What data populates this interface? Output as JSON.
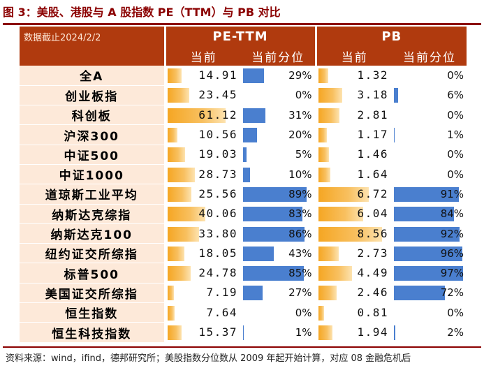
{
  "title": "图 3：美股、港股与 A 股指数 PE（TTM）与 PB 对比",
  "table": {
    "date_label": "数据截止2024/2/2",
    "group_pe": "PE-TTM",
    "group_pb": "PB",
    "sub_current": "当前",
    "sub_percentile": "当前分位",
    "rows": [
      {
        "name": "全A",
        "pe": "14.91",
        "pe_pct": "29%",
        "pb": "1.32",
        "pb_pct": "0%"
      },
      {
        "name": "创业板指",
        "pe": "23.45",
        "pe_pct": "0%",
        "pb": "3.18",
        "pb_pct": "6%"
      },
      {
        "name": "科创板",
        "pe": "61.12",
        "pe_pct": "31%",
        "pb": "2.81",
        "pb_pct": "0%"
      },
      {
        "name": "沪深300",
        "pe": "10.56",
        "pe_pct": "20%",
        "pb": "1.17",
        "pb_pct": "1%"
      },
      {
        "name": "中证500",
        "pe": "19.03",
        "pe_pct": "5%",
        "pb": "1.46",
        "pb_pct": "0%"
      },
      {
        "name": "中证1000",
        "pe": "28.73",
        "pe_pct": "10%",
        "pb": "1.64",
        "pb_pct": "0%"
      },
      {
        "name": "道琼斯工业平均",
        "pe": "25.56",
        "pe_pct": "89%",
        "pb": "6.72",
        "pb_pct": "91%"
      },
      {
        "name": "纳斯达克综指",
        "pe": "40.06",
        "pe_pct": "83%",
        "pb": "6.04",
        "pb_pct": "84%"
      },
      {
        "name": "纳斯达克100",
        "pe": "33.80",
        "pe_pct": "86%",
        "pb": "8.56",
        "pb_pct": "92%"
      },
      {
        "name": "纽约证交所综指",
        "pe": "18.05",
        "pe_pct": "43%",
        "pb": "2.73",
        "pb_pct": "96%"
      },
      {
        "name": "标普500",
        "pe": "24.78",
        "pe_pct": "85%",
        "pb": "4.49",
        "pb_pct": "97%"
      },
      {
        "name": "美国证交所综指",
        "pe": "7.19",
        "pe_pct": "27%",
        "pb": "2.46",
        "pb_pct": "72%"
      },
      {
        "name": "恒生指数",
        "pe": "7.64",
        "pe_pct": "0%",
        "pb": "0.81",
        "pb_pct": "0%"
      },
      {
        "name": "恒生科技指数",
        "pe": "15.37",
        "pe_pct": "1%",
        "pb": "1.94",
        "pb_pct": "2%"
      }
    ]
  },
  "source": "资料来源：wind，ifind，德邦研究所；美股指数分位数从 2009 年起开始计算，对应 08 金融危机后",
  "colors": {
    "title": "#8b0000",
    "header": "#b03a0e",
    "bar_gold": "#f5a623",
    "bar_blue": "#4a7fcf"
  }
}
